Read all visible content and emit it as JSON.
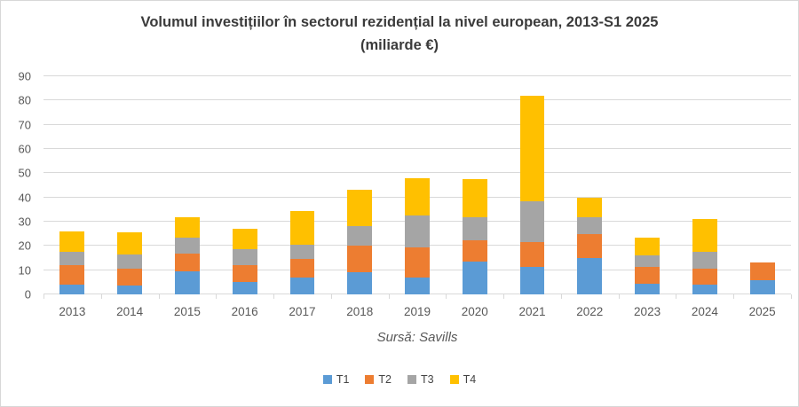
{
  "chart_data": {
    "type": "bar",
    "stacked": true,
    "title": "Volumul investițiilor în sectorul rezidențial la nivel european, 2013-S1 2025",
    "subtitle": "(miliarde €)",
    "source_label": "Sursă: Savills",
    "categories": [
      "2013",
      "2014",
      "2015",
      "2016",
      "2017",
      "2018",
      "2019",
      "2020",
      "2021",
      "2022",
      "2023",
      "2024",
      "2025"
    ],
    "series": [
      {
        "name": "T1",
        "color": "#5B9BD5",
        "values": [
          4,
          3.5,
          9.5,
          5,
          7,
          9,
          7,
          13.5,
          11.5,
          15,
          4.5,
          4,
          6
        ]
      },
      {
        "name": "T2",
        "color": "#ED7D31",
        "values": [
          8,
          7,
          7.5,
          7,
          7.5,
          11,
          12.5,
          9,
          10,
          10,
          7,
          6.5,
          7
        ]
      },
      {
        "name": "T3",
        "color": "#A5A5A5",
        "values": [
          5.5,
          6,
          6.5,
          6.5,
          6,
          8,
          13,
          9.5,
          17,
          7,
          4.5,
          7,
          0
        ]
      },
      {
        "name": "T4",
        "color": "#FFC000",
        "values": [
          8.5,
          9,
          8.5,
          8.5,
          14,
          15,
          15.5,
          15.5,
          43.5,
          8,
          7.5,
          13.5,
          0
        ]
      }
    ],
    "totals": [
      26,
      25.5,
      32,
      27,
      34.5,
      43,
      48,
      47.5,
      82,
      40,
      23.5,
      31,
      13
    ],
    "xlabel": "",
    "ylabel": "",
    "ylim": [
      0,
      90
    ],
    "ytick_step": 10,
    "y_tick_labels": [
      "0",
      "10",
      "20",
      "30",
      "40",
      "50",
      "60",
      "70",
      "80",
      "90"
    ],
    "grid": true,
    "legend_position": "bottom",
    "legend_labels": [
      "T1",
      "T2",
      "T3",
      "T4"
    ],
    "colors": {
      "T1": "#5B9BD5",
      "T2": "#ED7D31",
      "T3": "#A5A5A5",
      "T4": "#FFC000",
      "gridline": "#D9D9D9",
      "axis_text": "#595959",
      "title_text": "#3B3B3B"
    }
  }
}
